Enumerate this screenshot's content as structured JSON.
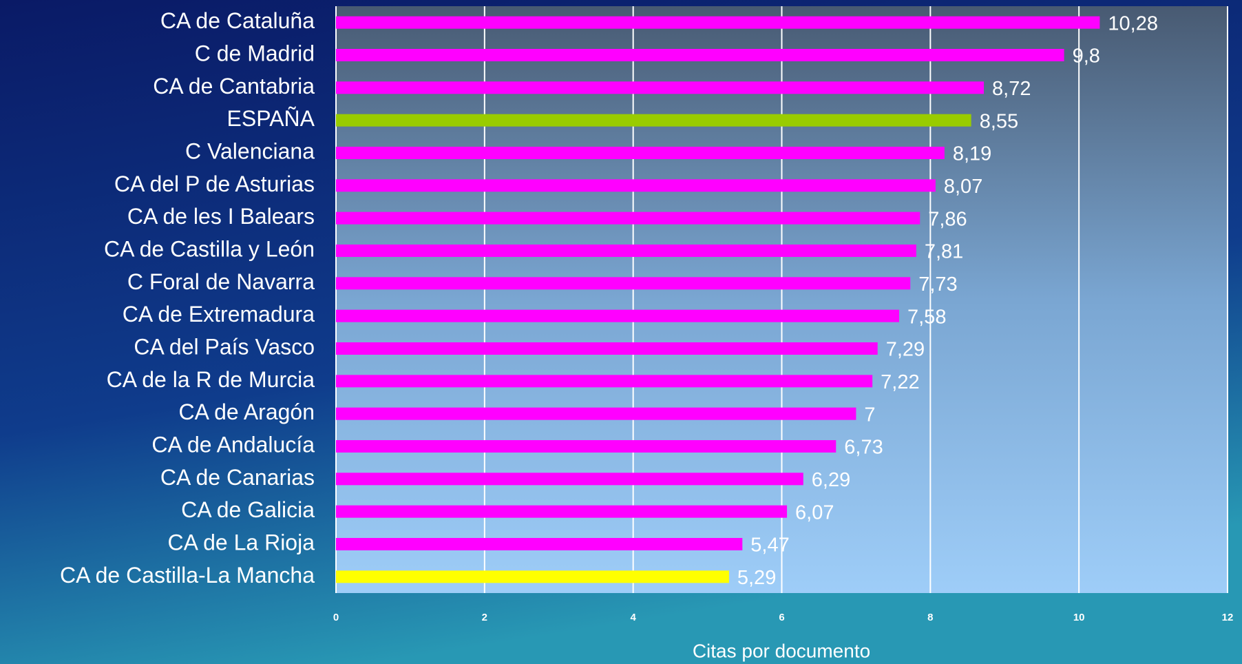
{
  "chart_data": {
    "type": "barh",
    "categories": [
      "CA de Cataluña",
      "C de Madrid",
      "CA de Cantabria",
      "ESPAÑA",
      "C Valenciana",
      "CA del P de Asturias",
      "CA de les I Balears",
      "CA de Castilla y León",
      "C Foral de Navarra",
      "CA de Extremadura",
      "CA del País Vasco",
      "CA de la R de Murcia",
      "CA de Aragón",
      "CA de Andalucía",
      "CA de Canarias",
      "CA de Galicia",
      "CA de La Rioja",
      "CA de Castilla-La Mancha"
    ],
    "values": [
      10.28,
      9.8,
      8.72,
      8.55,
      8.19,
      8.07,
      7.86,
      7.81,
      7.73,
      7.58,
      7.29,
      7.22,
      7,
      6.73,
      6.29,
      6.07,
      5.47,
      5.29
    ],
    "value_labels": [
      "10,28",
      "9,8",
      "8,72",
      "8,55",
      "8,19",
      "8,07",
      "7,86",
      "7,81",
      "7,73",
      "7,58",
      "7,29",
      "7,22",
      "7",
      "6,73",
      "6,29",
      "6,07",
      "5,47",
      "5,29"
    ],
    "colors": [
      "#ff00ff",
      "#ff00ff",
      "#ff00ff",
      "#99cc00",
      "#ff00ff",
      "#ff00ff",
      "#ff00ff",
      "#ff00ff",
      "#ff00ff",
      "#ff00ff",
      "#ff00ff",
      "#ff00ff",
      "#ff00ff",
      "#ff00ff",
      "#ff00ff",
      "#ff00ff",
      "#ff00ff",
      "#ffff00"
    ],
    "xlabel": "Citas por documento",
    "xlim": [
      0,
      12
    ],
    "xticks": [
      0,
      2,
      4,
      6,
      8,
      10,
      12
    ],
    "grid": true
  }
}
